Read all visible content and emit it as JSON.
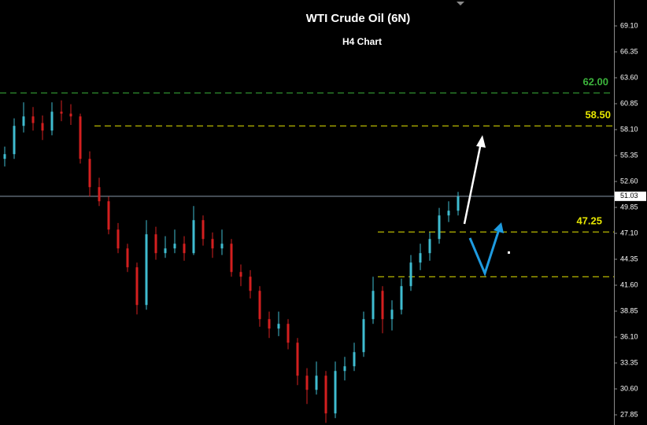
{
  "chart_data": {
    "type": "candlestick",
    "title": "WTI Crude Oil (6N)",
    "subtitle": "H4 Chart",
    "ylim": [
      26.77,
      71.85
    ],
    "yticks": [
      {
        "value": 69.1,
        "label": "69.10"
      },
      {
        "value": 66.35,
        "label": "66.35"
      },
      {
        "value": 63.6,
        "label": "63.60"
      },
      {
        "value": 60.85,
        "label": "60.85"
      },
      {
        "value": 58.1,
        "label": "58.10"
      },
      {
        "value": 55.35,
        "label": "55.35"
      },
      {
        "value": 52.6,
        "label": "52.60"
      },
      {
        "value": 49.85,
        "label": "49.85"
      },
      {
        "value": 47.1,
        "label": "47.10"
      },
      {
        "value": 44.35,
        "label": "44.35"
      },
      {
        "value": 41.6,
        "label": "41.60"
      },
      {
        "value": 38.85,
        "label": "38.85"
      },
      {
        "value": 36.1,
        "label": "36.10"
      },
      {
        "value": 33.35,
        "label": "33.35"
      },
      {
        "value": 30.6,
        "label": "30.60"
      },
      {
        "value": 27.85,
        "label": "27.85"
      }
    ],
    "up_color": "#3fbcd0",
    "down_color": "#d41f1f",
    "open": [
      55,
      55.5,
      58.5,
      59.5,
      58.8,
      58,
      60,
      59.8,
      59.5,
      55,
      52,
      50.5,
      47.5,
      45.5,
      43.5,
      39.5,
      47,
      45,
      45.5,
      46,
      45,
      48.5,
      46.5,
      45.5,
      46,
      43,
      42.5,
      41,
      38,
      37,
      37.5,
      35.5,
      32,
      30.5,
      32,
      28,
      32.5,
      33,
      34.5,
      38,
      41,
      38,
      39,
      41.5,
      44,
      45,
      46.5,
      49,
      49.5
    ],
    "high": [
      56.3,
      59.3,
      61,
      60.5,
      59.6,
      61,
      61.2,
      60.8,
      59.8,
      55.8,
      53,
      51,
      48.2,
      46,
      44,
      48.5,
      47.8,
      46.8,
      47.5,
      46.8,
      50,
      49,
      47.2,
      47.5,
      46.5,
      43.8,
      43.2,
      41.5,
      38.8,
      38.8,
      38,
      36,
      32.8,
      33.5,
      32.5,
      33.5,
      34,
      35.5,
      38.8,
      42.5,
      41.5,
      40,
      42.3,
      44.8,
      46,
      47.2,
      49.8,
      50.5,
      51.5
    ],
    "low": [
      54.2,
      55,
      57.8,
      58,
      57,
      57.5,
      59,
      58.6,
      54.5,
      51,
      50,
      47,
      45,
      43,
      38.5,
      39,
      44.3,
      44.5,
      45,
      44.2,
      44.8,
      45.8,
      44.5,
      44.8,
      42.5,
      41.5,
      40.2,
      37.2,
      36,
      36.2,
      34.8,
      31,
      29,
      30,
      27,
      27.5,
      31.5,
      32.5,
      34,
      37.5,
      36.5,
      36.8,
      38.5,
      41,
      43.2,
      44.2,
      46,
      48.3,
      49
    ],
    "close": [
      55.5,
      58.5,
      59.5,
      58.8,
      58,
      60,
      59.8,
      59.5,
      55,
      52,
      50.5,
      47.5,
      45.5,
      43.5,
      39.5,
      47,
      45,
      45.5,
      46,
      45,
      48.5,
      46.5,
      45.5,
      46,
      43,
      42.5,
      41,
      38,
      37,
      37.5,
      35.5,
      32,
      30.5,
      32,
      28,
      32.5,
      33,
      34.5,
      38,
      41,
      38,
      39,
      41.5,
      44,
      45,
      46.5,
      49,
      49.5,
      51
    ],
    "levels": [
      {
        "value": 62,
        "label": "62.00",
        "color": "#3cb43c"
      },
      {
        "value": 58.5,
        "label": "58.50",
        "color": "#e6e600"
      },
      {
        "value": 47.25,
        "label": "47.25",
        "color": "#e6e600"
      },
      {
        "value": 42.5,
        "color": "#e6e600"
      }
    ],
    "current": {
      "value": 51.03,
      "label": "51.03"
    }
  }
}
